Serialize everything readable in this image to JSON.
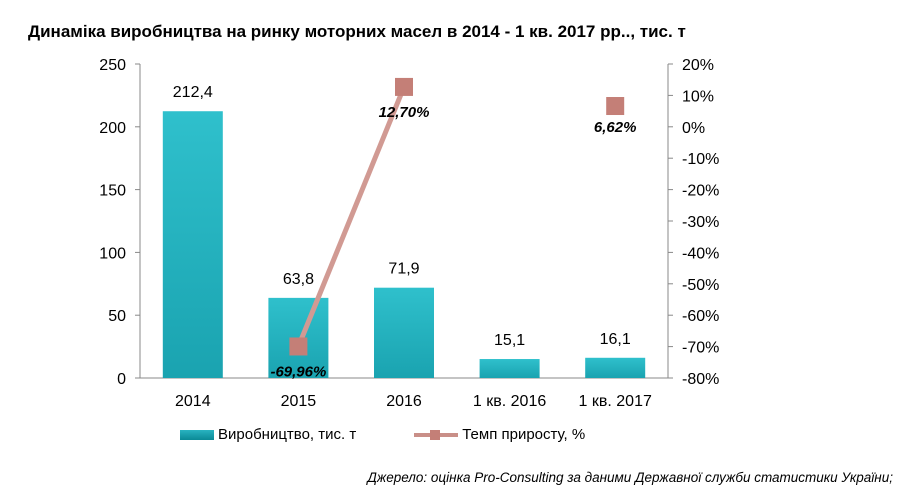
{
  "title": "Динаміка виробництва на ринку моторних масел в 2014 - 1 кв. 2017 рр.., тис. т",
  "source": "Джерело: оцінка Pro-Consulting за даними Державної служби статистики України;",
  "colors": {
    "bar": "#1aa3b0",
    "bar_top": "#2fc0cc",
    "line": "#d19a93",
    "marker": "#c47f77"
  },
  "chart_data": {
    "type": "bar",
    "categories": [
      "2014",
      "2015",
      "2016",
      "1 кв. 2016",
      "1 кв. 2017"
    ],
    "series": [
      {
        "name": "Виробництво, тис. т",
        "type": "bar",
        "axis": "left",
        "values": [
          212.4,
          63.8,
          71.9,
          15.1,
          16.1
        ],
        "labels": [
          "212,4",
          "63,8",
          "71,9",
          "15,1",
          "16,1"
        ]
      },
      {
        "name": "Темп приросту, %",
        "type": "line",
        "axis": "right",
        "values": [
          null,
          -69.96,
          12.7,
          null,
          6.62
        ],
        "labels": [
          "",
          "-69,96%",
          "12,70%",
          "",
          "6,62%"
        ]
      }
    ],
    "y_left": {
      "min": 0,
      "max": 250,
      "ticks": [
        0,
        50,
        100,
        150,
        200,
        250
      ],
      "tick_labels": [
        "0",
        "50",
        "100",
        "150",
        "200",
        "250"
      ]
    },
    "y_right": {
      "min": -80,
      "max": 20,
      "ticks": [
        -80,
        -70,
        -60,
        -50,
        -40,
        -30,
        -20,
        -10,
        0,
        10,
        20
      ],
      "tick_labels": [
        "-80%",
        "-70%",
        "-60%",
        "-50%",
        "-40%",
        "-30%",
        "-20%",
        "-10%",
        "0%",
        "10%",
        "20%"
      ]
    },
    "legend": "bottom",
    "grid": false
  }
}
